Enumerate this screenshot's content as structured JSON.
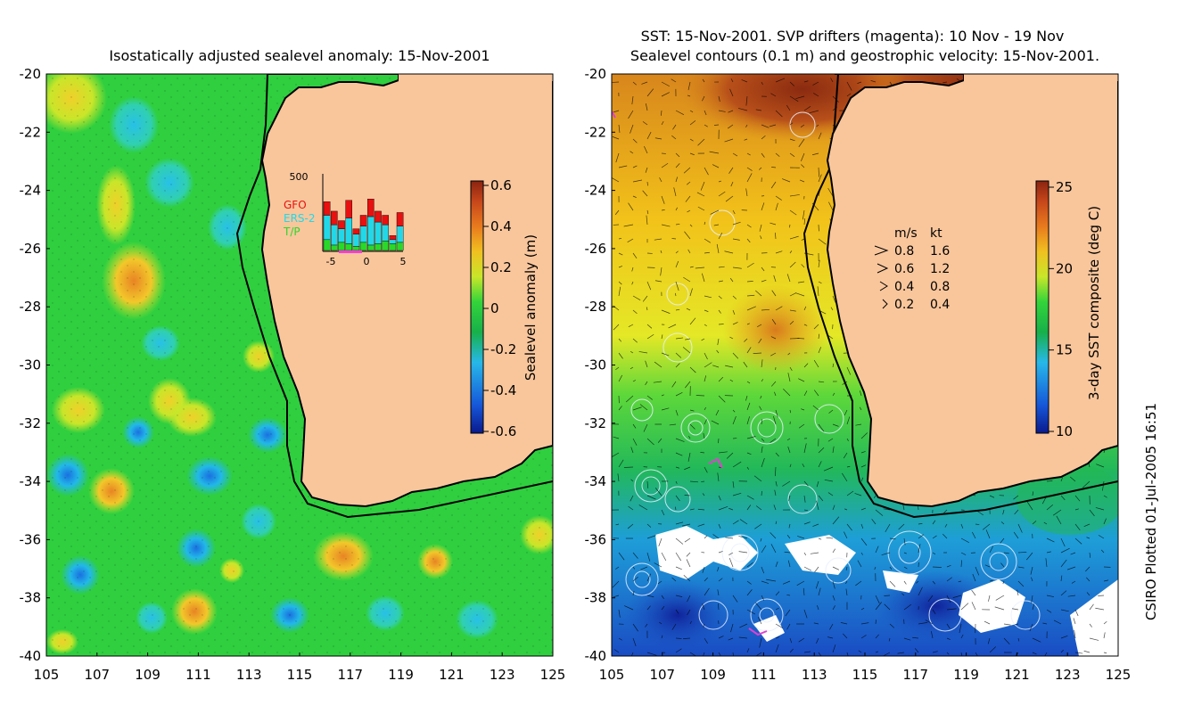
{
  "left_panel": {
    "title": "Isostatically adjusted sealevel anomaly: 15-Nov-2001",
    "colorbar": {
      "label": "Sealevel anomaly (m)",
      "ticks": [
        "0.6",
        "0.4",
        "0.2",
        "0",
        "-0.2",
        "-0.4",
        "-0.6"
      ],
      "colors": [
        "#0a1a8c",
        "#1556d8",
        "#27b8e8",
        "#17b04a",
        "#33d43a",
        "#c8e62a",
        "#f0c020",
        "#e87a1e",
        "#c6461a",
        "#8a2410"
      ]
    },
    "inset": {
      "y_max_label": "500",
      "legend": [
        {
          "label": "GFO",
          "color": "#e81010"
        },
        {
          "label": "ERS-2",
          "color": "#22d8e8"
        },
        {
          "label": "T/P",
          "color": "#2ad82a"
        }
      ],
      "x_ticks": [
        "-5",
        "0",
        "5"
      ],
      "bars": [
        {
          "tp": 80,
          "ers": 180,
          "gfo": 100
        },
        {
          "tp": 40,
          "ers": 150,
          "gfo": 100
        },
        {
          "tp": 60,
          "ers": 100,
          "gfo": 60
        },
        {
          "tp": 50,
          "ers": 190,
          "gfo": 130
        },
        {
          "tp": 30,
          "ers": 90,
          "gfo": 40
        },
        {
          "tp": 60,
          "ers": 120,
          "gfo": 80
        },
        {
          "tp": 40,
          "ers": 210,
          "gfo": 130
        },
        {
          "tp": 50,
          "ers": 160,
          "gfo": 80
        },
        {
          "tp": 70,
          "ers": 120,
          "gfo": 70
        },
        {
          "tp": 50,
          "ers": 30,
          "gfo": 30
        },
        {
          "tp": 60,
          "ers": 120,
          "gfo": 100
        }
      ]
    }
  },
  "right_panel": {
    "title_line1": "SST: 15-Nov-2001. SVP drifters (magenta): 10 Nov - 19 Nov",
    "title_line2": "Sealevel contours (0.1 m) and geostrophic velocity: 15-Nov-2001.",
    "colorbar": {
      "label": "3-day SST composite (deg C)",
      "ticks": [
        "25",
        "20",
        "15",
        "10"
      ],
      "colors": [
        "#0a1a8c",
        "#1556d8",
        "#27b8e8",
        "#17b04a",
        "#33d43a",
        "#c8e62a",
        "#f0c020",
        "#e87a1e",
        "#c6461a",
        "#8a2410"
      ]
    },
    "speed_legend": {
      "header_ms": "m/s",
      "header_kt": "kt",
      "rows": [
        {
          "ms": "0.8",
          "kt": "1.6"
        },
        {
          "ms": "0.6",
          "kt": "1.2"
        },
        {
          "ms": "0.4",
          "kt": "0.8"
        },
        {
          "ms": "0.2",
          "kt": "0.4"
        }
      ]
    }
  },
  "axes": {
    "y_ticks": [
      "-20",
      "-22",
      "-24",
      "-26",
      "-28",
      "-30",
      "-32",
      "-34",
      "-36",
      "-38",
      "-40"
    ],
    "x_ticks": [
      "105",
      "107",
      "109",
      "111",
      "113",
      "115",
      "117",
      "119",
      "121",
      "123",
      "125"
    ]
  },
  "credit": "CSIRO Plotted 01-Jul-2005 16:51",
  "colors": {
    "land": "#f9c69c",
    "ocean_green": "#2fcf3f",
    "coast": "#000000"
  }
}
